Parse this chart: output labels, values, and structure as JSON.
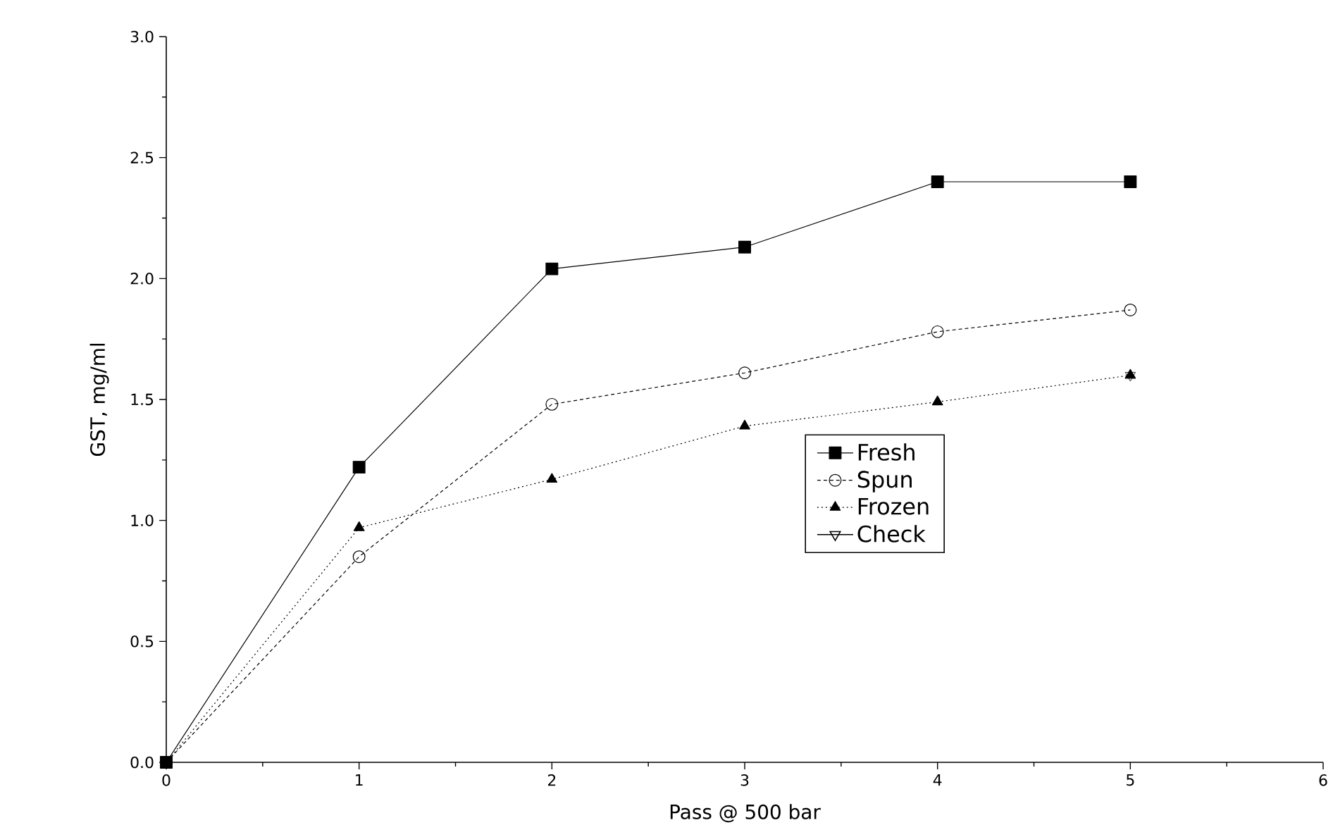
{
  "chart_data": {
    "type": "line",
    "xlabel": "Pass @ 500 bar",
    "ylabel": "GST, mg/ml",
    "x": [
      0,
      1,
      2,
      3,
      4,
      5
    ],
    "series": [
      {
        "name": "Fresh",
        "color": "#000000",
        "marker": "square",
        "line_style": "solid",
        "values": [
          0,
          1.22,
          2.04,
          2.13,
          2.4,
          2.4
        ]
      },
      {
        "name": "Spun",
        "color": "#000000",
        "marker": "circle",
        "line_style": "dashed",
        "values": [
          0,
          0.85,
          1.48,
          1.61,
          1.78,
          1.87
        ]
      },
      {
        "name": "Frozen",
        "color": "#000000",
        "marker": "triangle",
        "line_style": "dotted",
        "values": [
          0,
          0.97,
          1.17,
          1.39,
          1.49,
          1.6
        ]
      },
      {
        "name": "Check",
        "type": "scatter",
        "color": "#000000",
        "marker": "triangle-down",
        "x": [
          5
        ],
        "values": [
          1.6
        ]
      }
    ],
    "xlim": [
      0,
      6
    ],
    "xticks": [
      0,
      1,
      2,
      3,
      4,
      5,
      6
    ],
    "ylim": [
      0,
      3
    ],
    "yticks": [
      {
        "value": 0,
        "label": "0.0"
      },
      0.5,
      {
        "value": 1,
        "label": "1.0"
      },
      1.5,
      {
        "value": 2,
        "label": "2.0"
      },
      2.5,
      {
        "value": 3,
        "label": "3.0"
      }
    ],
    "grid": false,
    "legend": "right"
  }
}
